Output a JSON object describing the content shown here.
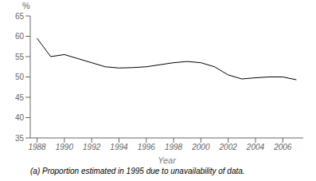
{
  "chart_data": {
    "type": "line",
    "x": [
      1988,
      1989,
      1990,
      1991,
      1992,
      1993,
      1994,
      1995,
      1996,
      1997,
      1998,
      1999,
      2000,
      2001,
      2002,
      2003,
      2004,
      2005,
      2006,
      2007
    ],
    "values": [
      59.5,
      55.0,
      55.5,
      54.5,
      53.5,
      52.5,
      52.2,
      52.3,
      52.5,
      53.0,
      53.5,
      53.8,
      53.5,
      52.5,
      50.5,
      49.5,
      49.8,
      50.0,
      50.0,
      49.3
    ],
    "color": "#000000",
    "xlabel": "Year",
    "ylabel": "%",
    "annotations": [
      "(a) Proportion estimated in 1995 due to unavailability of data."
    ],
    "xlim": [
      1987.5,
      2007.5
    ],
    "xticks": [
      1988,
      1990,
      1992,
      1994,
      1996,
      1998,
      2000,
      2002,
      2004,
      2006
    ],
    "ylim": [
      35,
      65
    ],
    "yticks": [
      35,
      40,
      45,
      50,
      55,
      60,
      65
    ],
    "grid": false
  }
}
